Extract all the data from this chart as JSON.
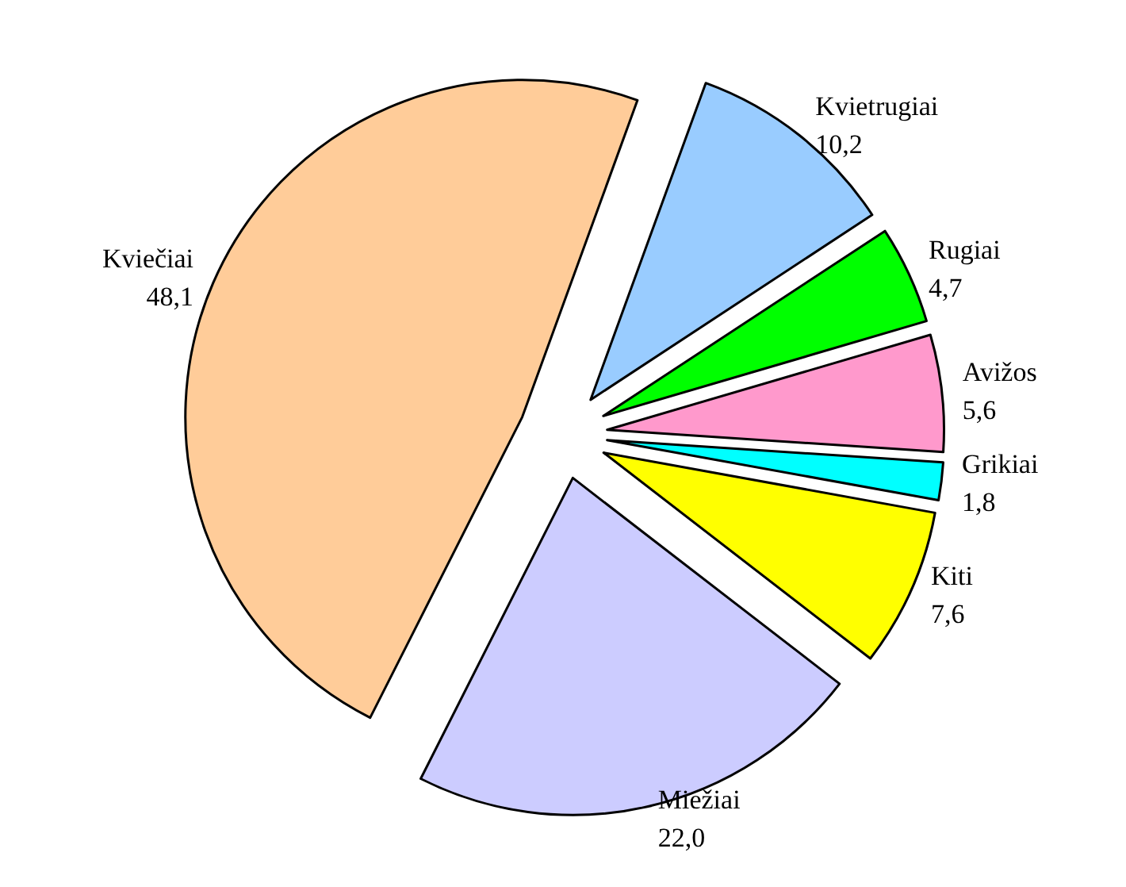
{
  "chart_data": {
    "type": "pie",
    "categories": [
      "Kvietrugiai",
      "Rugiai",
      "Avižos",
      "Grikiai",
      "Kiti",
      "Miežiai",
      "Kviečiai"
    ],
    "values": [
      10.2,
      4.7,
      5.6,
      1.8,
      7.6,
      22.0,
      48.1
    ],
    "value_labels": [
      "10,2",
      "4,7",
      "5,6",
      "1,8",
      "7,6",
      "22,0",
      "48,1"
    ],
    "colors": [
      "#99ccff",
      "#00ff00",
      "#ff99cc",
      "#00ffff",
      "#ffff00",
      "#ccccff",
      "#ffcc99"
    ],
    "legend": false
  }
}
